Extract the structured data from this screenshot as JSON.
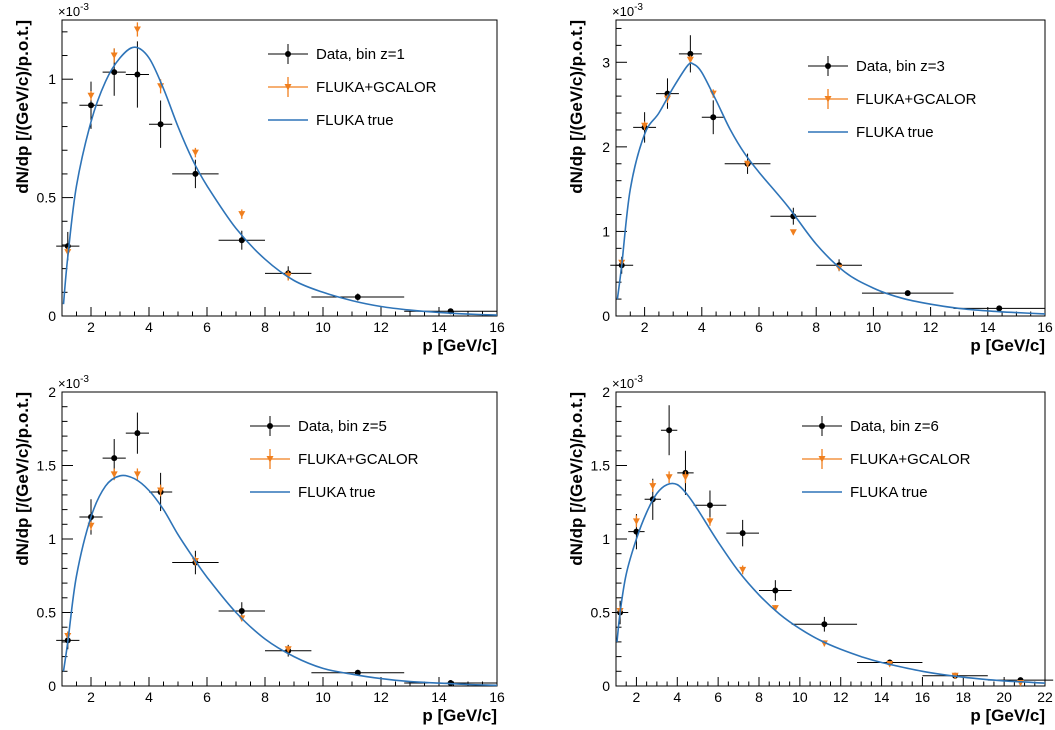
{
  "colors": {
    "data": "#000000",
    "mc": "#f07f1e",
    "true": "#2e74b8",
    "axis": "#000000"
  },
  "chart_data": [
    {
      "type": "scatter",
      "xlabel": "p [GeV/c]",
      "ylabel": "dN/dp  [/(GeV/c)/p.o.t.]",
      "yexp": "×10",
      "yexp_power": "-3",
      "xlim": [
        1,
        16
      ],
      "ylim": [
        0,
        1.25
      ],
      "xticks": [
        2,
        4,
        6,
        8,
        10,
        12,
        14,
        16
      ],
      "xtick_labels": [
        "2",
        "4",
        "6",
        "8",
        "10",
        "12",
        "14",
        "16"
      ],
      "yticks": [
        0,
        0.5,
        1
      ],
      "ytick_labels": [
        "0",
        "0.5",
        "1"
      ],
      "legend": [
        "Data, bin z=1",
        "FLUKA+GCALOR",
        "FLUKA true"
      ],
      "series": [
        {
          "name": "Data, bin z=1",
          "marker": "circle",
          "x": [
            1.2,
            2.0,
            2.8,
            3.6,
            4.4,
            5.6,
            7.2,
            8.8,
            11.2,
            14.4
          ],
          "y": [
            0.295,
            0.89,
            1.03,
            1.02,
            0.81,
            0.6,
            0.32,
            0.18,
            0.08,
            0.02
          ],
          "xerr": [
            0.4,
            0.4,
            0.4,
            0.4,
            0.4,
            0.8,
            0.8,
            0.8,
            1.6,
            1.6
          ],
          "yerr": [
            0.06,
            0.1,
            0.1,
            0.14,
            0.1,
            0.06,
            0.04,
            0.03,
            0.015,
            0.01
          ]
        },
        {
          "name": "FLUKA+GCALOR",
          "marker": "triangle-down",
          "x": [
            1.2,
            2.0,
            2.8,
            3.6,
            4.4,
            5.6,
            7.2,
            8.8
          ],
          "y": [
            0.27,
            0.93,
            1.1,
            1.21,
            0.97,
            0.69,
            0.43,
            0.17
          ],
          "yerr": [
            0.02,
            0.02,
            0.03,
            0.03,
            0.03,
            0.02,
            0.02,
            0.02
          ]
        },
        {
          "name": "FLUKA true",
          "type": "line",
          "x": [
            1.05,
            1.2,
            1.5,
            2.0,
            2.5,
            3.0,
            3.5,
            4.0,
            4.5,
            5.0,
            5.5,
            6.0,
            7.0,
            8.0,
            9.0,
            10.0,
            11.0,
            12.0,
            13.0,
            14.0,
            15.0,
            16.0
          ],
          "y": [
            0.05,
            0.25,
            0.55,
            0.82,
            0.99,
            1.09,
            1.135,
            1.09,
            0.96,
            0.8,
            0.66,
            0.55,
            0.37,
            0.24,
            0.15,
            0.1,
            0.065,
            0.04,
            0.025,
            0.015,
            0.008,
            0.004
          ]
        }
      ]
    },
    {
      "type": "scatter",
      "xlabel": "p [GeV/c]",
      "ylabel": "dN/dp  [/(GeV/c)/p.o.t.]",
      "yexp": "×10",
      "yexp_power": "-3",
      "xlim": [
        1,
        16
      ],
      "ylim": [
        0,
        3.5
      ],
      "xticks": [
        2,
        4,
        6,
        8,
        10,
        12,
        14,
        16
      ],
      "xtick_labels": [
        "2",
        "4",
        "6",
        "8",
        "10",
        "12",
        "14",
        "16"
      ],
      "yticks": [
        0,
        1,
        2,
        3
      ],
      "ytick_labels": [
        "0",
        "1",
        "2",
        "3"
      ],
      "legend": [
        "Data, bin z=3",
        "FLUKA+GCALOR",
        "FLUKA true"
      ],
      "series": [
        {
          "name": "Data, bin z=3",
          "marker": "circle",
          "x": [
            1.2,
            2.0,
            2.8,
            3.6,
            4.4,
            5.6,
            7.2,
            8.8,
            11.2,
            14.4
          ],
          "y": [
            0.6,
            2.23,
            2.63,
            3.1,
            2.35,
            1.8,
            1.18,
            0.6,
            0.27,
            0.09
          ],
          "xerr": [
            0.4,
            0.4,
            0.4,
            0.4,
            0.4,
            0.8,
            0.8,
            0.8,
            1.6,
            1.6
          ],
          "yerr": [
            0.1,
            0.18,
            0.18,
            0.22,
            0.2,
            0.12,
            0.1,
            0.07,
            0.03,
            0.015
          ]
        },
        {
          "name": "FLUKA+GCALOR",
          "marker": "triangle-down",
          "x": [
            1.2,
            2.0,
            2.8,
            3.6,
            4.4,
            5.6,
            7.2,
            8.8
          ],
          "y": [
            0.63,
            2.25,
            2.57,
            3.03,
            2.63,
            1.8,
            0.99,
            0.57
          ],
          "yerr": [
            0.03,
            0.05,
            0.05,
            0.05,
            0.05,
            0.04,
            0.03,
            0.03
          ]
        },
        {
          "name": "FLUKA true",
          "type": "line",
          "x": [
            1.05,
            1.2,
            1.5,
            2.0,
            2.5,
            3.0,
            3.5,
            3.7,
            4.0,
            4.5,
            5.0,
            5.5,
            6.0,
            7.0,
            8.0,
            9.0,
            10.0,
            11.0,
            12.0,
            13.0,
            14.0,
            15.0,
            16.0
          ],
          "y": [
            0.2,
            0.6,
            1.5,
            2.15,
            2.4,
            2.7,
            2.96,
            2.98,
            2.88,
            2.55,
            2.2,
            1.92,
            1.7,
            1.3,
            0.85,
            0.52,
            0.33,
            0.21,
            0.14,
            0.09,
            0.06,
            0.04,
            0.025
          ]
        }
      ]
    },
    {
      "type": "scatter",
      "xlabel": "p [GeV/c]",
      "ylabel": "dN/dp  [/(GeV/c)/p.o.t.]",
      "yexp": "×10",
      "yexp_power": "-3",
      "xlim": [
        1,
        16
      ],
      "ylim": [
        0,
        2.0
      ],
      "xticks": [
        2,
        4,
        6,
        8,
        10,
        12,
        14,
        16
      ],
      "xtick_labels": [
        "2",
        "4",
        "6",
        "8",
        "10",
        "12",
        "14",
        "16"
      ],
      "yticks": [
        0,
        0.5,
        1,
        1.5,
        2
      ],
      "ytick_labels": [
        "0",
        "0.5",
        "1",
        "1.5",
        "2"
      ],
      "legend": [
        "Data, bin z=5",
        "FLUKA+GCALOR",
        "FLUKA true"
      ],
      "series": [
        {
          "name": "Data, bin z=5",
          "marker": "circle",
          "x": [
            1.2,
            2.0,
            2.8,
            3.6,
            4.4,
            5.6,
            7.2,
            8.8,
            11.2,
            14.4
          ],
          "y": [
            0.31,
            1.15,
            1.55,
            1.72,
            1.32,
            0.84,
            0.51,
            0.24,
            0.09,
            0.02
          ],
          "xerr": [
            0.4,
            0.4,
            0.4,
            0.4,
            0.4,
            0.8,
            0.8,
            0.8,
            1.6,
            1.6
          ],
          "yerr": [
            0.06,
            0.12,
            0.13,
            0.14,
            0.13,
            0.08,
            0.06,
            0.04,
            0.02,
            0.01
          ]
        },
        {
          "name": "FLUKA+GCALOR",
          "marker": "triangle-down",
          "x": [
            1.2,
            2.0,
            2.8,
            3.6,
            4.4,
            5.6,
            7.2,
            8.8
          ],
          "y": [
            0.34,
            1.09,
            1.44,
            1.44,
            1.33,
            0.85,
            0.46,
            0.25
          ],
          "yerr": [
            0.03,
            0.03,
            0.04,
            0.04,
            0.04,
            0.03,
            0.02,
            0.02
          ]
        },
        {
          "name": "FLUKA true",
          "type": "line",
          "x": [
            1.05,
            1.2,
            1.5,
            2.0,
            2.5,
            3.0,
            3.5,
            4.0,
            4.5,
            5.0,
            5.5,
            6.0,
            7.0,
            8.0,
            9.0,
            10.0,
            11.0,
            12.0,
            13.0,
            14.0,
            15.0,
            16.0
          ],
          "y": [
            0.1,
            0.3,
            0.75,
            1.15,
            1.36,
            1.43,
            1.41,
            1.33,
            1.2,
            1.03,
            0.88,
            0.74,
            0.5,
            0.32,
            0.2,
            0.12,
            0.08,
            0.05,
            0.03,
            0.02,
            0.01,
            0.005
          ]
        }
      ]
    },
    {
      "type": "scatter",
      "xlabel": "p [GeV/c]",
      "ylabel": "dN/dp  [/(GeV/c)/p.o.t.]",
      "yexp": "×10",
      "yexp_power": "-3",
      "xlim": [
        1,
        22
      ],
      "ylim": [
        0,
        2.0
      ],
      "xticks": [
        2,
        4,
        6,
        8,
        10,
        12,
        14,
        16,
        18,
        20,
        22
      ],
      "xtick_labels": [
        "2",
        "4",
        "6",
        "8",
        "10",
        "12",
        "14",
        "16",
        "18",
        "20",
        "22"
      ],
      "yticks": [
        0,
        0.5,
        1,
        1.5,
        2
      ],
      "ytick_labels": [
        "0",
        "0.5",
        "1",
        "1.5",
        "2"
      ],
      "legend": [
        "Data, bin z=6",
        "FLUKA+GCALOR",
        "FLUKA true"
      ],
      "series": [
        {
          "name": "Data, bin z=6",
          "marker": "circle",
          "x": [
            1.2,
            2.0,
            2.8,
            3.6,
            4.4,
            5.6,
            7.2,
            8.8,
            11.2,
            14.4,
            17.6,
            20.8
          ],
          "y": [
            0.5,
            1.05,
            1.27,
            1.74,
            1.45,
            1.23,
            1.04,
            0.65,
            0.42,
            0.16,
            0.07,
            0.04
          ],
          "xerr": [
            0.4,
            0.4,
            0.4,
            0.4,
            0.4,
            0.8,
            0.8,
            0.8,
            1.6,
            1.6,
            1.6,
            1.6
          ],
          "yerr": [
            0.08,
            0.12,
            0.14,
            0.17,
            0.15,
            0.1,
            0.09,
            0.07,
            0.05,
            0.02,
            0.015,
            0.01
          ]
        },
        {
          "name": "FLUKA+GCALOR",
          "marker": "triangle-down",
          "x": [
            1.2,
            2.0,
            2.8,
            3.6,
            4.4,
            5.6,
            7.2,
            8.8,
            11.2,
            14.4,
            17.6,
            20.8
          ],
          "y": [
            0.51,
            1.12,
            1.36,
            1.42,
            1.42,
            1.12,
            0.79,
            0.53,
            0.29,
            0.15,
            0.07,
            0.02
          ],
          "yerr": [
            0.03,
            0.04,
            0.04,
            0.04,
            0.04,
            0.03,
            0.03,
            0.02,
            0.02,
            0.01,
            0.01,
            0.01
          ]
        },
        {
          "name": "FLUKA true",
          "type": "line",
          "x": [
            1.05,
            1.2,
            1.5,
            2.0,
            2.5,
            3.0,
            3.5,
            4.0,
            4.5,
            5.0,
            6.0,
            7.0,
            8.0,
            9.0,
            10.0,
            11.0,
            12.0,
            13.0,
            14.0,
            16.0,
            18.0,
            20.0,
            22.0
          ],
          "y": [
            0.3,
            0.5,
            0.76,
            1.0,
            1.18,
            1.31,
            1.37,
            1.37,
            1.3,
            1.2,
            0.98,
            0.78,
            0.62,
            0.49,
            0.39,
            0.31,
            0.25,
            0.2,
            0.16,
            0.1,
            0.06,
            0.035,
            0.02
          ]
        }
      ]
    }
  ]
}
